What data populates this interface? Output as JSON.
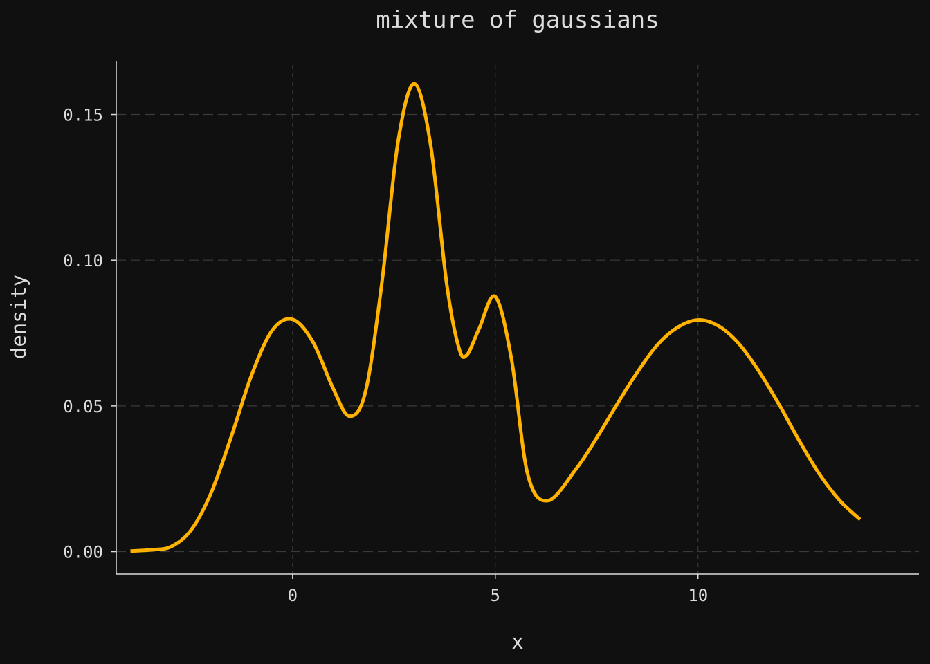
{
  "chart_data": {
    "type": "line",
    "title": "mixture of gaussians",
    "xlabel": "x",
    "ylabel": "density",
    "xlim": [
      -4.35,
      15.45
    ],
    "ylim": [
      -0.0077,
      0.1684
    ],
    "x_ticks": [
      0,
      5,
      10
    ],
    "y_ticks": [
      0.0,
      0.05,
      0.1,
      0.15
    ],
    "x_tick_labels": [
      "0",
      "5",
      "10"
    ],
    "y_tick_labels": [
      "0.00",
      "0.05",
      "0.10",
      "0.15"
    ],
    "grid": true,
    "legend": "none",
    "series": [
      {
        "color": "#ffb300",
        "x": [
          -4.0,
          -3.5,
          -3.0,
          -2.5,
          -2.0,
          -1.5,
          -1.0,
          -0.5,
          0.0,
          0.5,
          1.0,
          1.4,
          1.8,
          2.2,
          2.6,
          3.0,
          3.4,
          3.8,
          4.1,
          4.3,
          4.6,
          5.0,
          5.4,
          5.8,
          6.3,
          7.0,
          7.5,
          8.0,
          8.5,
          9.0,
          9.5,
          10.0,
          10.5,
          11.0,
          11.5,
          12.0,
          12.5,
          13.0,
          13.5,
          14.0
        ],
        "y": [
          0.0002,
          0.0006,
          0.0017,
          0.0075,
          0.0205,
          0.04,
          0.061,
          0.076,
          0.0797,
          0.072,
          0.056,
          0.0465,
          0.055,
          0.092,
          0.1405,
          0.1605,
          0.14,
          0.092,
          0.07,
          0.0675,
          0.0765,
          0.0875,
          0.066,
          0.0265,
          0.0175,
          0.0285,
          0.039,
          0.0505,
          0.0615,
          0.071,
          0.077,
          0.0795,
          0.0775,
          0.0715,
          0.062,
          0.0505,
          0.038,
          0.0265,
          0.0175,
          0.011
        ]
      }
    ]
  }
}
